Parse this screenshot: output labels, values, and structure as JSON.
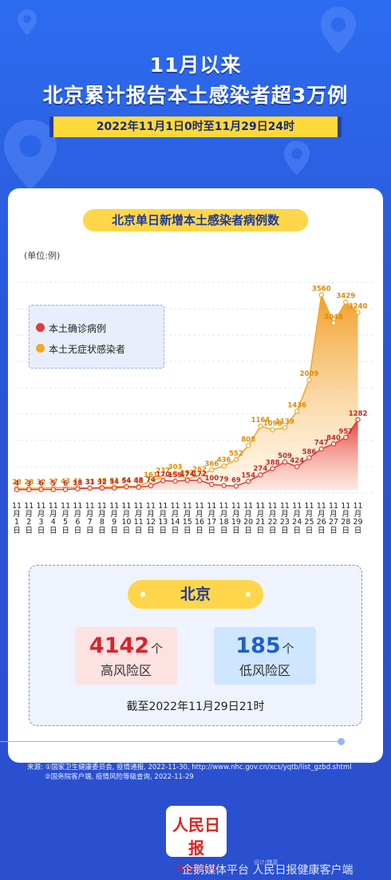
{
  "header": {
    "title_line1": "11月以来",
    "title_line2": "北京累计报告本土感染者超3万例",
    "date_range": "2022年11月1日0时至11月29日24时"
  },
  "chart_section": {
    "title": "北京单日新增本土感染者病例数",
    "unit": "(单位:例)"
  },
  "chart_data": {
    "type": "area",
    "categories": [
      "11月1日",
      "11月2日",
      "11月3日",
      "11月4日",
      "11月5日",
      "11月6日",
      "11月7日",
      "11月8日",
      "11月9日",
      "11月10日",
      "11月11日",
      "11月12日",
      "11月13日",
      "11月14日",
      "11月15日",
      "11月16日",
      "11月17日",
      "11月18日",
      "11月19日",
      "11月20日",
      "11月21日",
      "11月22日",
      "11月23日",
      "11月24日",
      "11月25日",
      "11月26日",
      "11月27日",
      "11月28日",
      "11月29日"
    ],
    "series": [
      {
        "name": "本土确诊病例",
        "color": "#e03a3a",
        "values": [
          4,
          3,
          6,
          5,
          6,
          18,
          31,
          32,
          34,
          54,
          48,
          74,
          170,
          159,
          174,
          172,
          100,
          79,
          69,
          154,
          274,
          388,
          509,
          424,
          586,
          747,
          840,
          957,
          1282
        ]
      },
      {
        "name": "本土无症状感染者",
        "color": "#f5a623",
        "values": [
          28,
          28,
          32,
          37,
          43,
          41,
          33,
          48,
          61,
          64,
          68,
          161,
          237,
          303,
          197,
          262,
          366,
          436,
          552,
          808,
          1164,
          1098,
          1139,
          1436,
          2009,
          3560,
          3048,
          3429,
          3240
        ]
      }
    ],
    "legend_placement": "top-left"
  },
  "beijing": {
    "label": "北京",
    "high_risk": {
      "value": "4142",
      "unit": "个",
      "label": "高风险区"
    },
    "low_risk": {
      "value": "185",
      "unit": "个",
      "label": "低风险区"
    },
    "as_of": "截至2022年11月29日21时"
  },
  "source": {
    "line1": "来源: ①国家卫生健康委员会, 疫情通报, 2022-11-30, http://www.nhc.gov.cn/xcs/yqtb/list_gzbd.shtml",
    "line2": "②国务院客户端, 疫情风险等级查询, 2022-11-29"
  },
  "logo": {
    "name": "人民日报",
    "sub": "健康客户端"
  },
  "watermark": {
    "text": "企鹅媒体平台 人民日报健康客户端",
    "small": "设计/魏嘉"
  },
  "colors": {
    "accent": "#ffd64a",
    "brand_blue": "#2a5ad8",
    "confirmed": "#e03a3a",
    "asymptomatic": "#f5a623",
    "high_risk_bg": "#fde2e2",
    "low_risk_bg": "#cfe6ff",
    "high_risk_text": "#d9232e",
    "low_risk_text": "#1f5fc6"
  }
}
